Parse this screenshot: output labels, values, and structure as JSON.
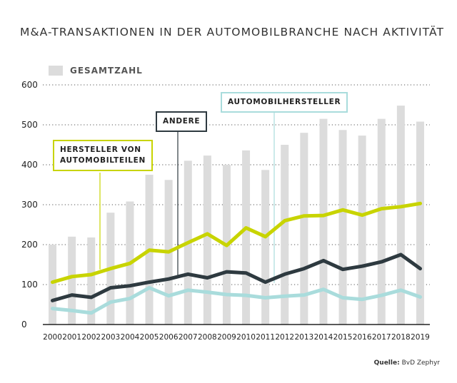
{
  "title": "M&A-TRANSAKTIONEN IN DER AUTOMOBILBRANCHE NACH AKTIVITÄT",
  "legend": {
    "total_label": "GESAMTZAHL"
  },
  "source": {
    "prefix": "Quelle:",
    "text": "BvD Zephyr"
  },
  "callouts": {
    "parts_line1": "HERSTELLER VON",
    "parts_line2": "AUTOMOBILTEILEN",
    "other": "ANDERE",
    "oem": "AUTOMOBILHERSTELLER"
  },
  "colors": {
    "total": "#dcdcdc",
    "parts": "#c8d400",
    "other": "#2e3a40",
    "oem": "#a9dcdc",
    "grid": "#555555"
  },
  "chart_data": {
    "type": "bar",
    "categories": [
      "2000",
      "2001",
      "2002",
      "2003",
      "2004",
      "2005",
      "2006",
      "2007",
      "2008",
      "2009",
      "2010",
      "2011",
      "2012",
      "2013",
      "2014",
      "2015",
      "2016",
      "2017",
      "2018",
      "2019"
    ],
    "ylim": [
      0,
      600
    ],
    "yticks": [
      "0",
      "100",
      "200",
      "300",
      "400",
      "500",
      "600"
    ],
    "grid": true,
    "legend_position": "top-left",
    "series": [
      {
        "name": "GESAMTZAHL",
        "kind": "bar",
        "values": [
          200,
          220,
          218,
          280,
          308,
          375,
          362,
          410,
          423,
          400,
          436,
          387,
          450,
          480,
          515,
          487,
          473,
          515,
          548,
          508
        ]
      },
      {
        "name": "HERSTELLER VON AUTOMOBILTEILEN",
        "kind": "line",
        "values": [
          106,
          120,
          125,
          140,
          153,
          186,
          182,
          205,
          227,
          198,
          242,
          220,
          260,
          272,
          273,
          287,
          274,
          290,
          295,
          303
        ]
      },
      {
        "name": "ANDERE",
        "kind": "line",
        "values": [
          60,
          74,
          68,
          92,
          97,
          106,
          114,
          126,
          117,
          132,
          129,
          106,
          126,
          140,
          160,
          138,
          146,
          157,
          175,
          140
        ]
      },
      {
        "name": "AUTOMOBILHERSTELLER",
        "kind": "line",
        "values": [
          40,
          35,
          29,
          56,
          65,
          92,
          72,
          86,
          81,
          75,
          73,
          67,
          71,
          74,
          88,
          67,
          63,
          73,
          86,
          69
        ]
      }
    ]
  }
}
